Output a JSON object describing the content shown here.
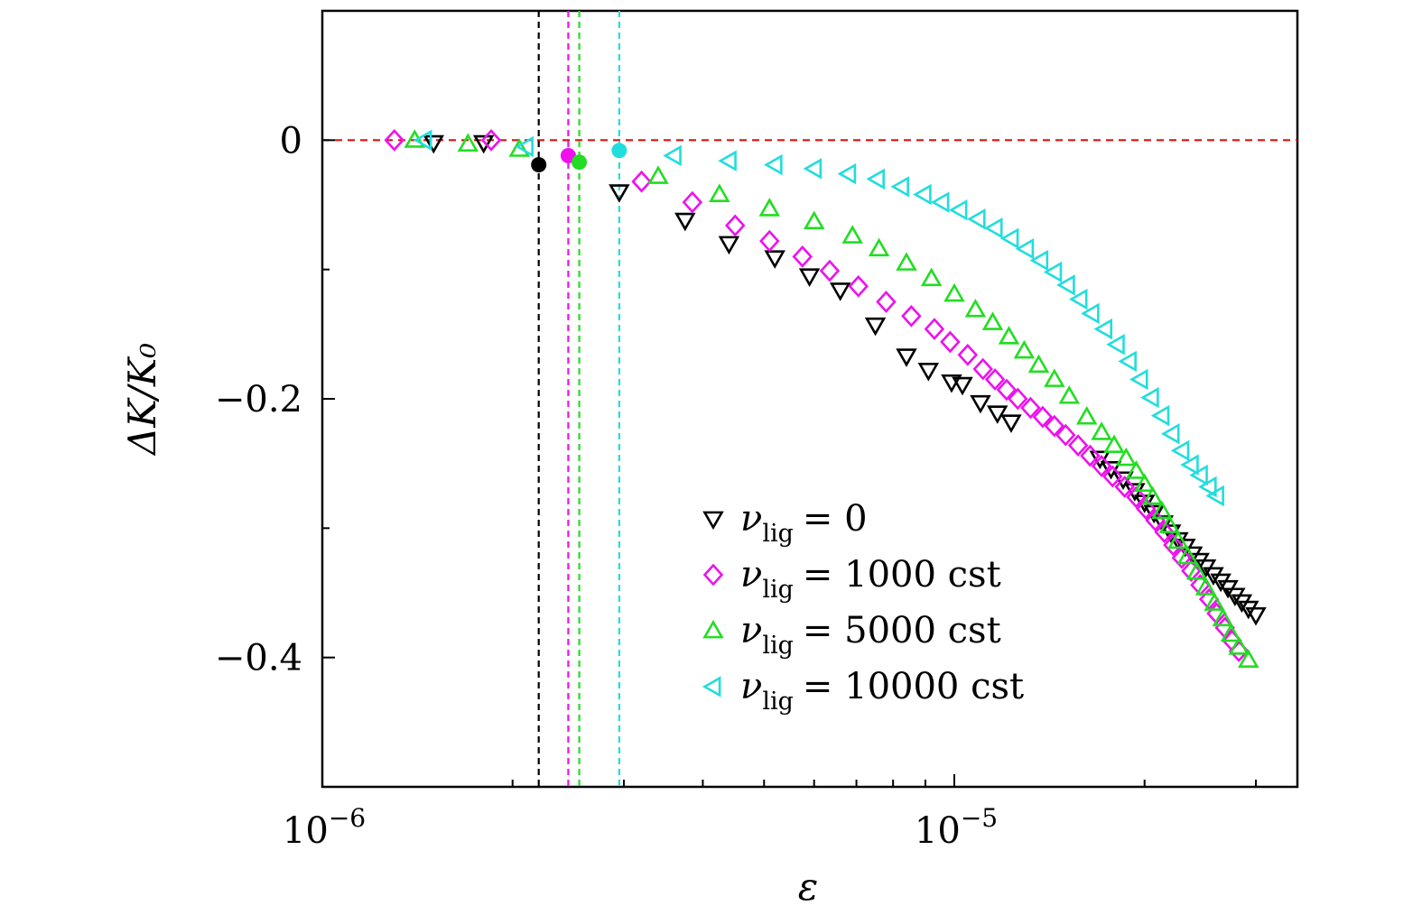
{
  "chart_data": {
    "type": "scatter",
    "title": "",
    "xlabel": "ε",
    "ylabel": "ΔK/K₀",
    "xscale": "log",
    "xlim": [
      1e-06,
      3.4e-05
    ],
    "ylim": [
      -0.5,
      0.1
    ],
    "grid": false,
    "legend_position": "lower-right",
    "x_tick_labels": [
      {
        "value": 1e-06,
        "base": "10",
        "exp": "−6"
      },
      {
        "value": 1e-05,
        "base": "10",
        "exp": "−5"
      }
    ],
    "y_tick_labels": [
      {
        "value": 0,
        "text": "0"
      },
      {
        "value": -0.2,
        "text": "−0.2"
      },
      {
        "value": -0.4,
        "text": "−0.4"
      }
    ],
    "reference_line_y": 0,
    "reference_line_color": "#e01010",
    "critical_points": [
      {
        "x": 2.2e-06,
        "y": -0.019,
        "color": "#000000"
      },
      {
        "x": 2.45e-06,
        "y": -0.012,
        "color": "#ee11ee"
      },
      {
        "x": 2.55e-06,
        "y": -0.017,
        "color": "#22dd22"
      },
      {
        "x": 2.95e-06,
        "y": -0.008,
        "color": "#22dddd"
      }
    ],
    "series": [
      {
        "legend_var": "ν",
        "legend_sub": "lig",
        "legend_value": "= 0",
        "marker": "triangle-down",
        "color": "#000000",
        "points": [
          [
            1.5e-06,
            -0.002
          ],
          [
            1.8e-06,
            -0.002
          ],
          [
            2.95e-06,
            -0.04
          ],
          [
            3.75e-06,
            -0.062
          ],
          [
            4.4e-06,
            -0.08
          ],
          [
            5.2e-06,
            -0.091
          ],
          [
            5.9e-06,
            -0.105
          ],
          [
            6.6e-06,
            -0.116
          ],
          [
            7.5e-06,
            -0.143
          ],
          [
            8.4e-06,
            -0.167
          ],
          [
            9.1e-06,
            -0.178
          ],
          [
            9.9e-06,
            -0.187
          ],
          [
            1.03e-05,
            -0.189
          ],
          [
            1.1e-05,
            -0.203
          ],
          [
            1.17e-05,
            -0.211
          ],
          [
            1.23e-05,
            -0.218
          ],
          [
            1.7e-05,
            -0.246
          ],
          [
            1.77e-05,
            -0.254
          ],
          [
            1.85e-05,
            -0.262
          ],
          [
            1.93e-05,
            -0.271
          ],
          [
            2e-05,
            -0.28
          ],
          [
            2.07e-05,
            -0.288
          ],
          [
            2.14e-05,
            -0.296
          ],
          [
            2.2e-05,
            -0.303
          ],
          [
            2.26e-05,
            -0.309
          ],
          [
            2.32e-05,
            -0.314
          ],
          [
            2.38e-05,
            -0.32
          ],
          [
            2.44e-05,
            -0.325
          ],
          [
            2.5e-05,
            -0.33
          ],
          [
            2.57e-05,
            -0.336
          ],
          [
            2.64e-05,
            -0.341
          ],
          [
            2.71e-05,
            -0.346
          ],
          [
            2.78e-05,
            -0.352
          ],
          [
            2.85e-05,
            -0.357
          ],
          [
            2.92e-05,
            -0.362
          ],
          [
            3e-05,
            -0.367
          ]
        ]
      },
      {
        "legend_var": "ν",
        "legend_sub": "lig",
        "legend_value": "= 1000 cst",
        "marker": "diamond",
        "color": "#ee11ee",
        "points": [
          [
            1.3e-06,
            0.0
          ],
          [
            1.85e-06,
            0.0
          ],
          [
            3.2e-06,
            -0.032
          ],
          [
            3.85e-06,
            -0.048
          ],
          [
            4.5e-06,
            -0.066
          ],
          [
            5.1e-06,
            -0.078
          ],
          [
            5.75e-06,
            -0.09
          ],
          [
            6.35e-06,
            -0.101
          ],
          [
            7.05e-06,
            -0.113
          ],
          [
            7.8e-06,
            -0.125
          ],
          [
            8.55e-06,
            -0.136
          ],
          [
            9.3e-06,
            -0.146
          ],
          [
            9.85e-06,
            -0.156
          ],
          [
            1.05e-05,
            -0.166
          ],
          [
            1.11e-05,
            -0.177
          ],
          [
            1.16e-05,
            -0.185
          ],
          [
            1.21e-05,
            -0.193
          ],
          [
            1.26e-05,
            -0.2
          ],
          [
            1.32e-05,
            -0.207
          ],
          [
            1.38e-05,
            -0.214
          ],
          [
            1.44e-05,
            -0.221
          ],
          [
            1.5e-05,
            -0.228
          ],
          [
            1.57e-05,
            -0.236
          ],
          [
            1.64e-05,
            -0.244
          ],
          [
            1.71e-05,
            -0.252
          ],
          [
            1.78e-05,
            -0.26
          ],
          [
            1.86e-05,
            -0.268
          ],
          [
            1.94e-05,
            -0.276
          ],
          [
            2.01e-05,
            -0.285
          ],
          [
            2.08e-05,
            -0.294
          ],
          [
            2.15e-05,
            -0.303
          ],
          [
            2.22e-05,
            -0.313
          ],
          [
            2.29e-05,
            -0.323
          ],
          [
            2.37e-05,
            -0.333
          ],
          [
            2.45e-05,
            -0.344
          ],
          [
            2.53e-05,
            -0.355
          ],
          [
            2.6e-05,
            -0.366
          ],
          [
            2.68e-05,
            -0.377
          ],
          [
            2.75e-05,
            -0.387
          ],
          [
            2.82e-05,
            -0.395
          ]
        ]
      },
      {
        "legend_var": "ν",
        "legend_sub": "lig",
        "legend_value": "= 5000 cst",
        "marker": "triangle-up",
        "color": "#22dd22",
        "points": [
          [
            1.4e-06,
            0.0
          ],
          [
            1.7e-06,
            -0.003
          ],
          [
            2.05e-06,
            -0.007
          ],
          [
            3.4e-06,
            -0.028
          ],
          [
            4.25e-06,
            -0.042
          ],
          [
            5.1e-06,
            -0.053
          ],
          [
            6e-06,
            -0.063
          ],
          [
            6.9e-06,
            -0.074
          ],
          [
            7.6e-06,
            -0.084
          ],
          [
            8.4e-06,
            -0.095
          ],
          [
            9.2e-06,
            -0.107
          ],
          [
            1e-05,
            -0.119
          ],
          [
            1.08e-05,
            -0.131
          ],
          [
            1.15e-05,
            -0.141
          ],
          [
            1.22e-05,
            -0.152
          ],
          [
            1.29e-05,
            -0.163
          ],
          [
            1.36e-05,
            -0.174
          ],
          [
            1.44e-05,
            -0.185
          ],
          [
            1.52e-05,
            -0.198
          ],
          [
            1.62e-05,
            -0.214
          ],
          [
            1.71e-05,
            -0.226
          ],
          [
            1.79e-05,
            -0.236
          ],
          [
            1.87e-05,
            -0.246
          ],
          [
            1.94e-05,
            -0.256
          ],
          [
            2e-05,
            -0.266
          ],
          [
            2.06e-05,
            -0.276
          ],
          [
            2.13e-05,
            -0.287
          ],
          [
            2.19e-05,
            -0.298
          ],
          [
            2.26e-05,
            -0.31
          ],
          [
            2.34e-05,
            -0.322
          ],
          [
            2.42e-05,
            -0.334
          ],
          [
            2.5e-05,
            -0.346
          ],
          [
            2.58e-05,
            -0.358
          ],
          [
            2.66e-05,
            -0.37
          ],
          [
            2.74e-05,
            -0.382
          ],
          [
            2.82e-05,
            -0.392
          ],
          [
            2.92e-05,
            -0.402
          ]
        ]
      },
      {
        "legend_var": "ν",
        "legend_sub": "lig",
        "legend_value": "= 10000 cst",
        "marker": "triangle-left",
        "color": "#22dddd",
        "points": [
          [
            1.45e-06,
            0.0
          ],
          [
            2.1e-06,
            -0.005
          ],
          [
            3.6e-06,
            -0.012
          ],
          [
            4.4e-06,
            -0.016
          ],
          [
            5.2e-06,
            -0.019
          ],
          [
            6e-06,
            -0.022
          ],
          [
            6.8e-06,
            -0.026
          ],
          [
            7.55e-06,
            -0.03
          ],
          [
            8.25e-06,
            -0.036
          ],
          [
            8.95e-06,
            -0.042
          ],
          [
            9.55e-06,
            -0.048
          ],
          [
            1.02e-05,
            -0.054
          ],
          [
            1.09e-05,
            -0.061
          ],
          [
            1.16e-05,
            -0.068
          ],
          [
            1.23e-05,
            -0.076
          ],
          [
            1.3e-05,
            -0.084
          ],
          [
            1.37e-05,
            -0.093
          ],
          [
            1.44e-05,
            -0.102
          ],
          [
            1.51e-05,
            -0.112
          ],
          [
            1.58e-05,
            -0.123
          ],
          [
            1.65e-05,
            -0.134
          ],
          [
            1.73e-05,
            -0.146
          ],
          [
            1.81e-05,
            -0.158
          ],
          [
            1.89e-05,
            -0.171
          ],
          [
            1.97e-05,
            -0.185
          ],
          [
            2.05e-05,
            -0.199
          ],
          [
            2.13e-05,
            -0.213
          ],
          [
            2.21e-05,
            -0.227
          ],
          [
            2.29e-05,
            -0.24
          ],
          [
            2.37e-05,
            -0.251
          ],
          [
            2.45e-05,
            -0.259
          ],
          [
            2.53e-05,
            -0.268
          ],
          [
            2.6e-05,
            -0.275
          ]
        ]
      }
    ]
  }
}
